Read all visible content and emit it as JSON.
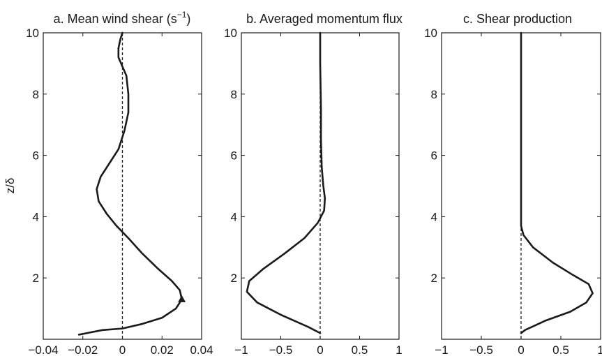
{
  "ylabel": "z/δ",
  "chart_data": [
    {
      "type": "line",
      "title": "a. Mean wind shear (s",
      "title_sup": "−1",
      "title_end": ")",
      "xlim": [
        -0.04,
        0.04
      ],
      "ylim": [
        0,
        10
      ],
      "xticks": [
        -0.04,
        -0.02,
        0,
        0.02,
        0.04
      ],
      "xtick_labels": [
        "−0.04",
        "−0.02",
        "0",
        "0.02",
        "0.04"
      ],
      "yticks": [
        2,
        4,
        6,
        8,
        10
      ],
      "ytick_labels": [
        "2",
        "4",
        "6",
        "8",
        "10"
      ],
      "reference_line": {
        "x": 0,
        "style": "dashed"
      },
      "marker": {
        "shape": "triangle",
        "x": 0.03,
        "y": 1.3
      },
      "series": [
        {
          "x": [
            -0.022,
            -0.01,
            0.0,
            0.01,
            0.02,
            0.027,
            0.03,
            0.029,
            0.025,
            0.018,
            0.01,
            0.003,
            -0.003,
            -0.008,
            -0.012,
            -0.013,
            -0.011,
            -0.006,
            -0.002,
            0.001,
            0.003,
            0.003,
            0.002,
            0.0,
            -0.002,
            -0.002,
            -0.001,
            0.0
          ],
          "y": [
            0.15,
            0.3,
            0.35,
            0.5,
            0.7,
            1.0,
            1.3,
            1.6,
            1.9,
            2.3,
            2.8,
            3.3,
            3.7,
            4.1,
            4.5,
            4.9,
            5.3,
            5.8,
            6.2,
            6.8,
            7.4,
            8.0,
            8.6,
            8.9,
            9.2,
            9.5,
            9.8,
            10.0
          ]
        }
      ]
    },
    {
      "type": "line",
      "title": "b. Averaged momentum flux",
      "xlim": [
        -1,
        1
      ],
      "ylim": [
        0,
        10
      ],
      "xticks": [
        -1,
        -0.5,
        0,
        0.5,
        1
      ],
      "xtick_labels": [
        "−1",
        "−0.5",
        "0",
        "0.5",
        "1"
      ],
      "yticks": [
        2,
        4,
        6,
        8,
        10
      ],
      "ytick_labels": [
        "2",
        "4",
        "6",
        "8",
        "10"
      ],
      "reference_line": {
        "x": 0,
        "style": "dashed"
      },
      "series": [
        {
          "x": [
            0.0,
            -0.15,
            -0.5,
            -0.8,
            -0.93,
            -0.9,
            -0.72,
            -0.45,
            -0.2,
            -0.03,
            0.05,
            0.06,
            0.04,
            0.02,
            0.01,
            0.01,
            0.0,
            0.0
          ],
          "y": [
            0.2,
            0.4,
            0.8,
            1.2,
            1.55,
            1.9,
            2.3,
            2.8,
            3.3,
            3.8,
            4.2,
            4.6,
            5.0,
            5.6,
            6.5,
            7.5,
            9.0,
            10.0
          ]
        }
      ]
    },
    {
      "type": "line",
      "title": "c. Shear production",
      "xlim": [
        -1,
        1
      ],
      "ylim": [
        0,
        10
      ],
      "xticks": [
        -1,
        -0.5,
        0,
        0.5,
        1
      ],
      "xtick_labels": [
        "−1",
        "−0.5",
        "0",
        "0.5",
        "1"
      ],
      "yticks": [
        2,
        4,
        6,
        8,
        10
      ],
      "ytick_labels": [
        "2",
        "4",
        "6",
        "8",
        "10"
      ],
      "reference_line": {
        "x": 0,
        "style": "dashed"
      },
      "series": [
        {
          "x": [
            0.0,
            0.05,
            0.3,
            0.62,
            0.82,
            0.9,
            0.85,
            0.65,
            0.4,
            0.15,
            0.03,
            0.0,
            0.0,
            0.0,
            0.0
          ],
          "y": [
            0.2,
            0.3,
            0.6,
            0.9,
            1.2,
            1.5,
            1.8,
            2.1,
            2.5,
            3.0,
            3.4,
            3.7,
            4.5,
            6.0,
            10.0
          ]
        }
      ]
    }
  ]
}
